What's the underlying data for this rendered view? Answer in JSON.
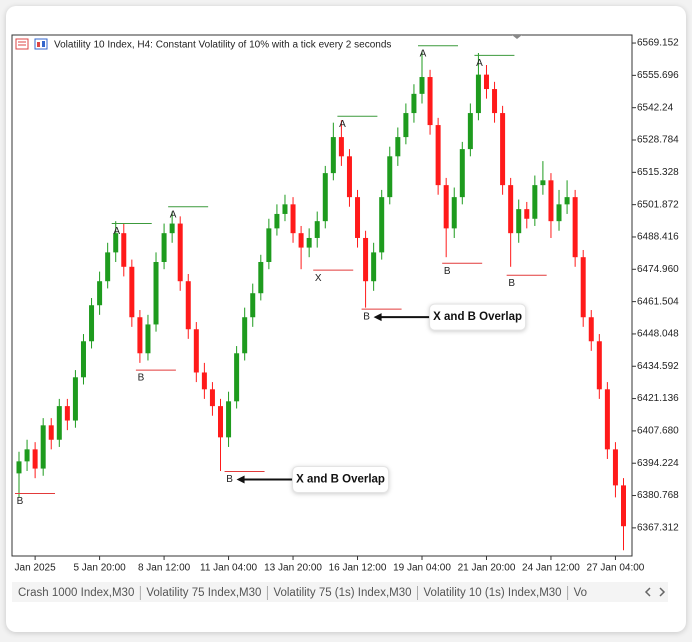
{
  "chart_data": {
    "type": "candlestick",
    "title": "Volatility 10 Index, H4:  Constant Volatility of 10% with a tick every 2 seconds",
    "categories": [
      null,
      null,
      "Jan 2025",
      null,
      null,
      null,
      null,
      null,
      null,
      null,
      "5 Jan 20:00",
      null,
      null,
      null,
      null,
      null,
      null,
      null,
      "8 Jan 12:00",
      null,
      null,
      null,
      null,
      null,
      null,
      null,
      "11 Jan 04:00",
      null,
      null,
      null,
      null,
      null,
      null,
      null,
      "13 Jan 20:00",
      null,
      null,
      null,
      null,
      null,
      null,
      null,
      "16 Jan 12:00",
      null,
      null,
      null,
      null,
      null,
      null,
      null,
      "19 Jan 04:00",
      null,
      null,
      null,
      null,
      null,
      null,
      null,
      "21 Jan 20:00",
      null,
      null,
      null,
      null,
      null,
      null,
      null,
      "24 Jan 12:00",
      null,
      null,
      null,
      null,
      null,
      null,
      null,
      "27 Jan 04:00",
      null
    ],
    "open": [
      6390,
      6395,
      6400,
      6392,
      6410,
      6404,
      6418,
      6412,
      6430,
      6445,
      6460,
      6470,
      6482,
      6490,
      6476,
      6455,
      6440,
      6452,
      6478,
      6490,
      6494,
      6470,
      6450,
      6432,
      6425,
      6418,
      6405,
      6420,
      6440,
      6455,
      6465,
      6478,
      6492,
      6498,
      6502,
      6490,
      6484,
      6488,
      6495,
      6515,
      6530,
      6522,
      6505,
      6488,
      6470,
      6482,
      6505,
      6522,
      6530,
      6540,
      6548,
      6555,
      6535,
      6510,
      6492,
      6505,
      6525,
      6540,
      6556,
      6550,
      6540,
      6510,
      6490,
      6500,
      6496,
      6510,
      6512,
      6495,
      6502,
      6505,
      6480,
      6455,
      6445,
      6425,
      6400,
      6385
    ],
    "high": [
      6399,
      6404,
      6403,
      6413,
      6413,
      6421,
      6421,
      6433,
      6448,
      6463,
      6474,
      6486,
      6495,
      6494,
      6479,
      6458,
      6456,
      6482,
      6494,
      6499,
      6497,
      6473,
      6453,
      6436,
      6428,
      6421,
      6424,
      6443,
      6459,
      6469,
      6481,
      6496,
      6502,
      6506,
      6505,
      6493,
      6492,
      6499,
      6518,
      6536,
      6537,
      6525,
      6508,
      6491,
      6486,
      6508,
      6526,
      6534,
      6544,
      6552,
      6566,
      6558,
      6538,
      6513,
      6509,
      6528,
      6544,
      6565,
      6560,
      6553,
      6543,
      6513,
      6504,
      6503,
      6514,
      6520,
      6515,
      6508,
      6512,
      6508,
      6483,
      6458,
      6448,
      6428,
      6403,
      6388
    ],
    "low": [
      6380,
      6391,
      6388,
      6389,
      6400,
      6401,
      6408,
      6409,
      6427,
      6442,
      6456,
      6467,
      6478,
      6472,
      6451,
      6436,
      6437,
      6449,
      6475,
      6486,
      6466,
      6446,
      6428,
      6421,
      6414,
      6391,
      6401,
      6417,
      6437,
      6451,
      6462,
      6475,
      6489,
      6495,
      6486,
      6475,
      6480,
      6484,
      6492,
      6512,
      6518,
      6501,
      6484,
      6459,
      6466,
      6479,
      6502,
      6518,
      6527,
      6536,
      6544,
      6531,
      6506,
      6480,
      6488,
      6502,
      6522,
      6537,
      6546,
      6536,
      6506,
      6476,
      6486,
      6492,
      6493,
      6506,
      6488,
      6491,
      6498,
      6476,
      6451,
      6441,
      6421,
      6396,
      6380,
      6358
    ],
    "close": [
      6395,
      6400,
      6392,
      6410,
      6404,
      6418,
      6412,
      6430,
      6445,
      6460,
      6470,
      6482,
      6490,
      6476,
      6455,
      6440,
      6452,
      6478,
      6490,
      6494,
      6470,
      6450,
      6432,
      6425,
      6418,
      6405,
      6420,
      6440,
      6455,
      6465,
      6478,
      6492,
      6498,
      6502,
      6490,
      6484,
      6488,
      6495,
      6515,
      6530,
      6522,
      6505,
      6488,
      6470,
      6482,
      6505,
      6522,
      6530,
      6540,
      6548,
      6555,
      6535,
      6510,
      6492,
      6505,
      6525,
      6540,
      6556,
      6550,
      6540,
      6510,
      6490,
      6500,
      6496,
      6510,
      6512,
      6495,
      6502,
      6505,
      6480,
      6455,
      6445,
      6425,
      6400,
      6385,
      6368
    ],
    "up_color": "#1e9b1e",
    "down_color": "#ff1a1a",
    "ylim": [
      6355.6,
      6572.5
    ],
    "yticks": [
      6569.152,
      6555.696,
      6542.24,
      6528.784,
      6515.328,
      6501.872,
      6488.416,
      {
        "value": 6474.96,
        "label": "6474.960"
      },
      6461.504,
      6448.048,
      6434.592,
      6421.136,
      {
        "value": 6407.68,
        "label": "6407.680"
      },
      6394.224,
      6380.768,
      6367.312
    ],
    "markers": [
      {
        "label": "A",
        "index": 12,
        "value": 6494,
        "color": "#3c9a3c"
      },
      {
        "label": "A",
        "index": 19,
        "value": 6501,
        "color": "#3c9a3c"
      },
      {
        "label": "A",
        "index": 40,
        "value": 6538.7,
        "color": "#3c9a3c"
      },
      {
        "label": "A",
        "index": 50,
        "value": 6568,
        "color": "#3c9a3c"
      },
      {
        "label": "A",
        "index": 57,
        "value": 6564,
        "color": "#3c9a3c"
      },
      {
        "label": "B",
        "index": 0,
        "value": 6381.6,
        "color": "#e23a3a"
      },
      {
        "label": "B",
        "index": 15,
        "value": 6433,
        "color": "#e23a3a"
      },
      {
        "label": "B",
        "index": 26,
        "value": 6390.8,
        "color": "#e23a3a"
      },
      {
        "label": "X",
        "index": 37,
        "value": 6474.6,
        "color": "#e23a3a"
      },
      {
        "label": "B",
        "index": 43,
        "value": 6458.4,
        "color": "#e23a3a"
      },
      {
        "label": "B",
        "index": 53,
        "value": 6477.5,
        "color": "#e23a3a"
      },
      {
        "label": "B",
        "index": 61,
        "value": 6472.5,
        "color": "#e23a3a"
      }
    ],
    "annotations": [
      {
        "text": "X and B Overlap",
        "index": 43
      },
      {
        "text": "X and B Overlap",
        "index": 26
      }
    ]
  },
  "tabs": [
    "Crash 1000 Index,M30",
    "Volatility 75 Index,M30",
    "Volatility 75 (1s) Index,M30",
    "Volatility 10 (1s) Index,M30",
    "Vo"
  ]
}
